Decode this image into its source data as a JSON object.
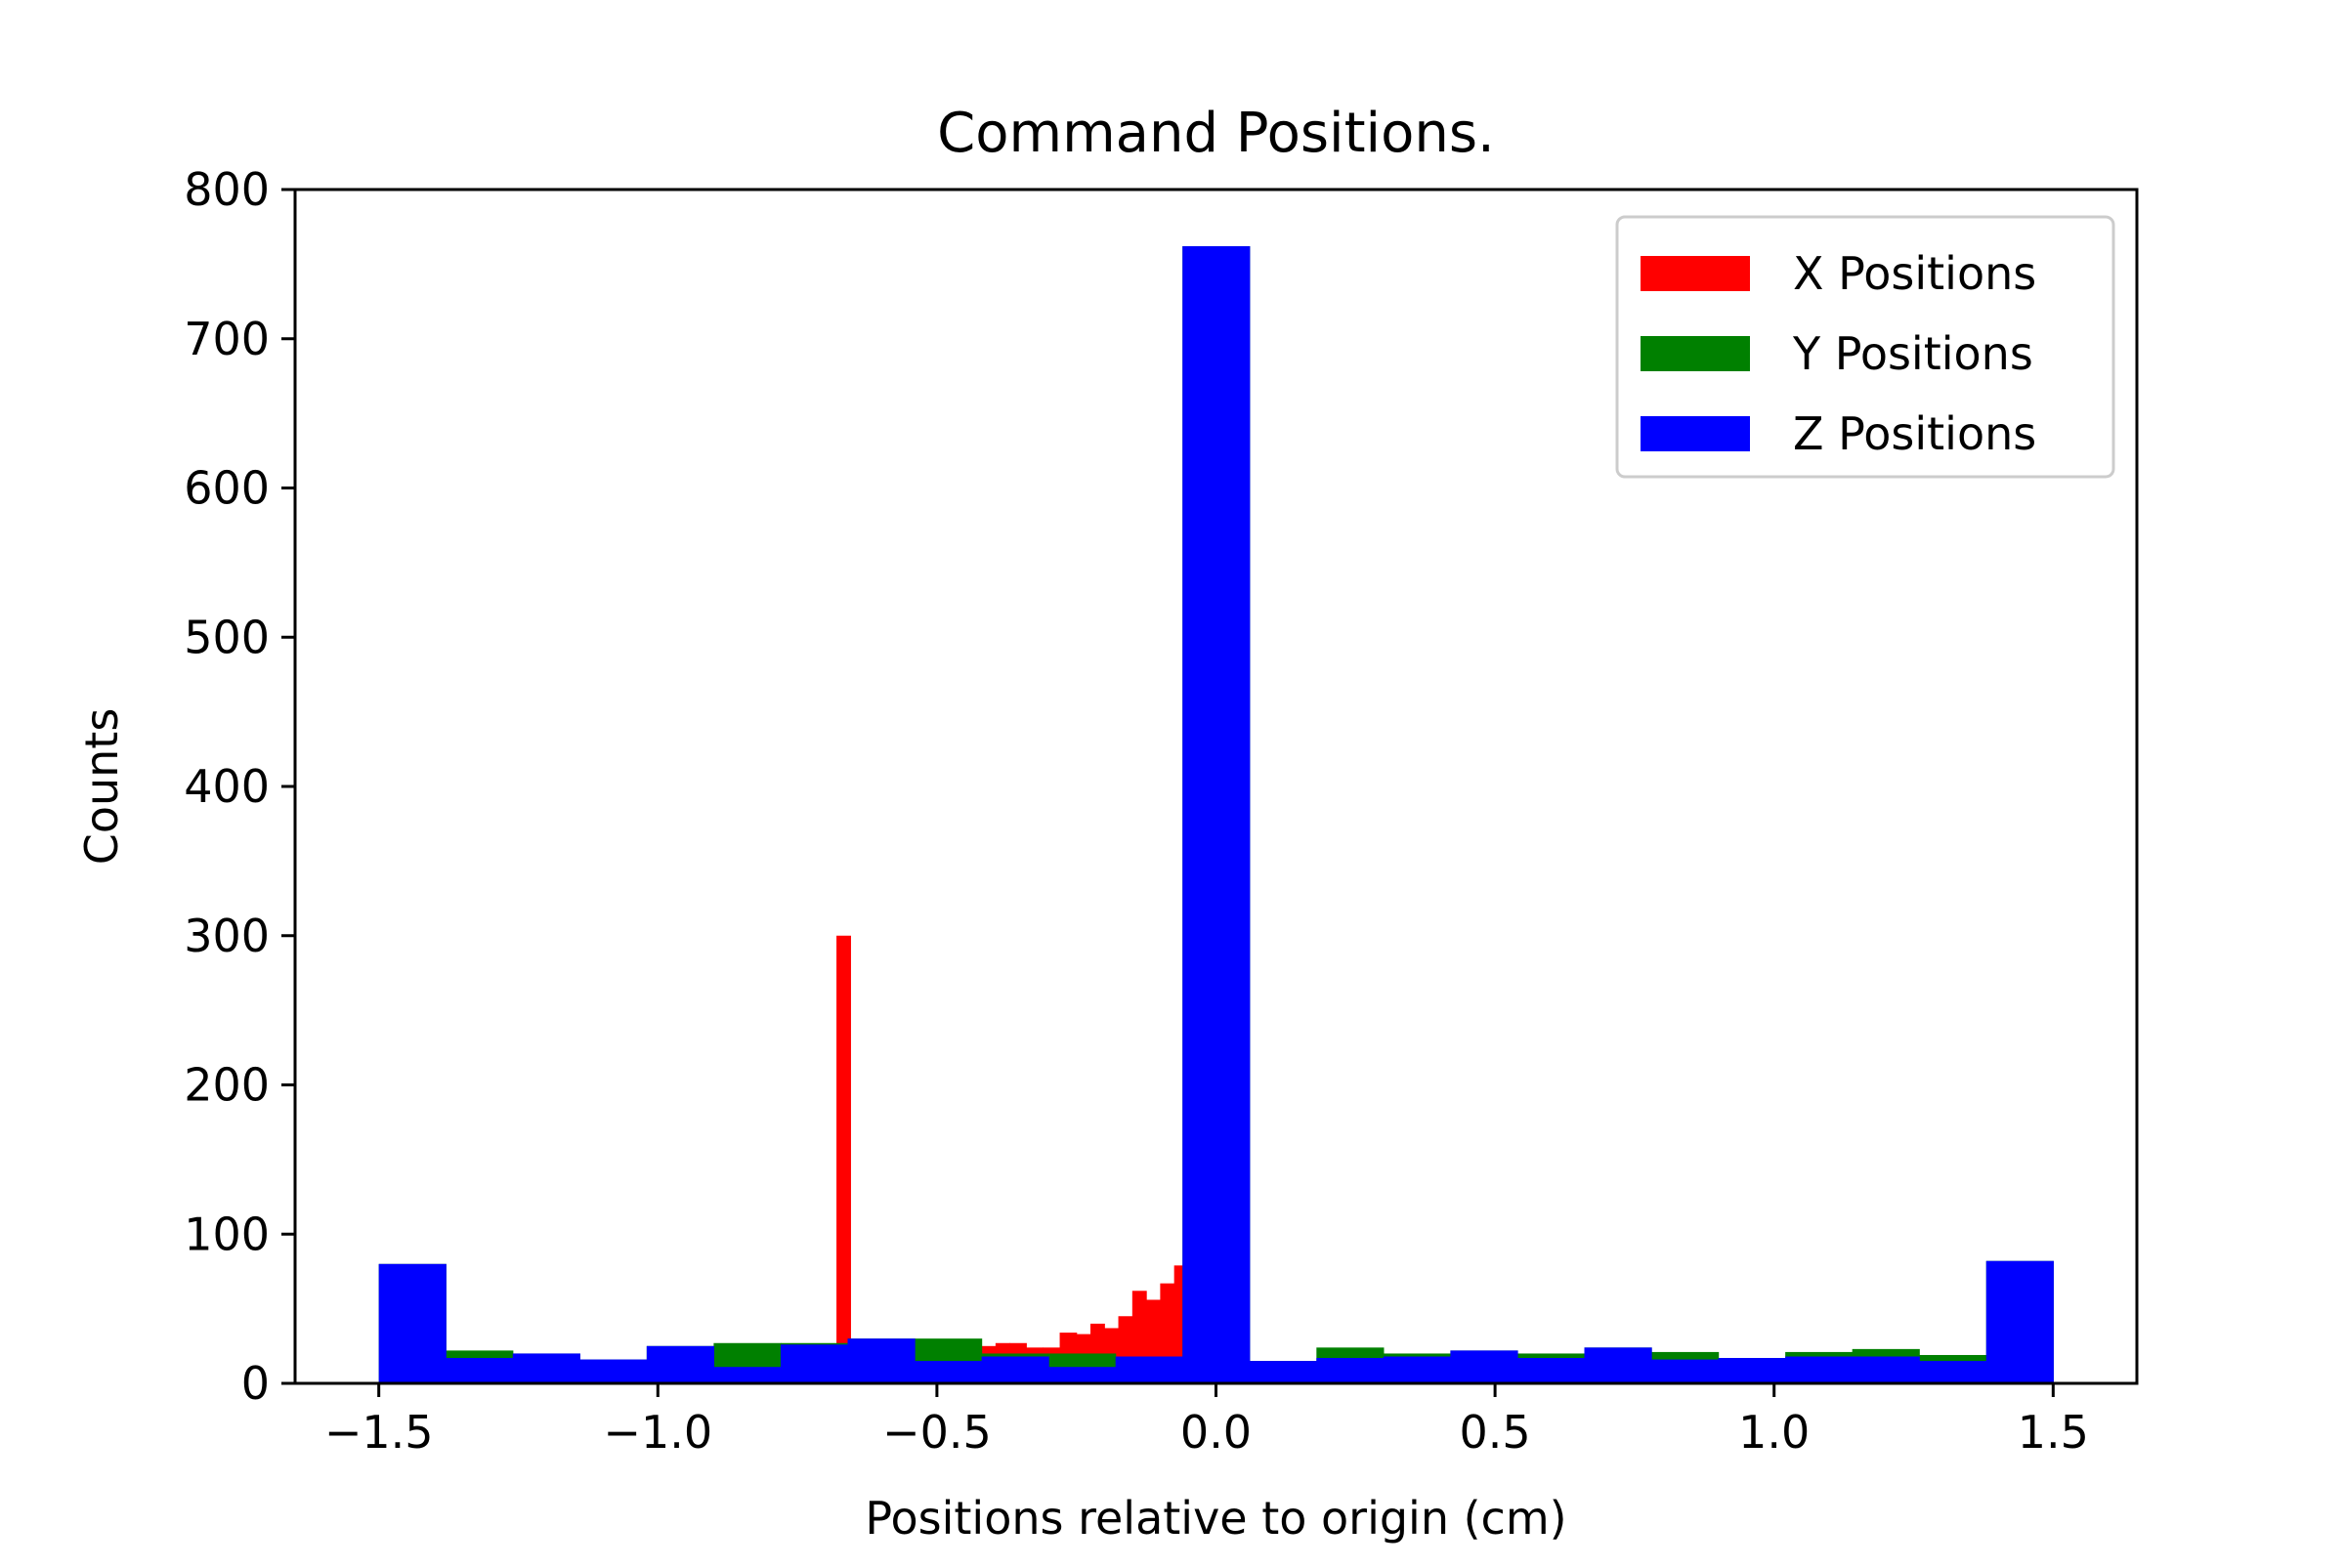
{
  "chart_data": {
    "type": "bar",
    "title": "Command Positions.",
    "xlabel": "Positions relative to origin (cm)",
    "ylabel": "Counts",
    "xlim": [
      -1.65,
      1.65
    ],
    "ylim": [
      0,
      800
    ],
    "xticks": [
      -1.5,
      -1.0,
      -0.5,
      0.0,
      0.5,
      1.0,
      1.5
    ],
    "xtick_labels": [
      "−1.5",
      "−1.0",
      "−0.5",
      "0.0",
      "0.5",
      "1.0",
      "1.5"
    ],
    "yticks": [
      0,
      100,
      200,
      300,
      400,
      500,
      600,
      700,
      800
    ],
    "ytick_labels": [
      "0",
      "100",
      "200",
      "300",
      "400",
      "500",
      "600",
      "700",
      "800"
    ],
    "grid": false,
    "legend_position": "top-right",
    "series": [
      {
        "name": "X Positions",
        "color": "#ff0000",
        "bins": [
          {
            "x0": -0.68,
            "x1": -0.655,
            "count": 300
          },
          {
            "x0": -0.42,
            "x1": -0.395,
            "count": 25
          },
          {
            "x0": -0.395,
            "x1": -0.37,
            "count": 27
          },
          {
            "x0": -0.37,
            "x1": -0.34,
            "count": 27
          },
          {
            "x0": -0.34,
            "x1": -0.31,
            "count": 24
          },
          {
            "x0": -0.31,
            "x1": -0.28,
            "count": 24
          },
          {
            "x0": -0.28,
            "x1": -0.25,
            "count": 34
          },
          {
            "x0": -0.25,
            "x1": -0.225,
            "count": 33
          },
          {
            "x0": -0.225,
            "x1": -0.2,
            "count": 40
          },
          {
            "x0": -0.2,
            "x1": -0.175,
            "count": 37
          },
          {
            "x0": -0.175,
            "x1": -0.15,
            "count": 45
          },
          {
            "x0": -0.15,
            "x1": -0.125,
            "count": 62
          },
          {
            "x0": -0.125,
            "x1": -0.1,
            "count": 56
          },
          {
            "x0": -0.1,
            "x1": -0.075,
            "count": 67
          },
          {
            "x0": -0.075,
            "x1": -0.06,
            "count": 79
          }
        ]
      },
      {
        "name": "Y Positions",
        "color": "#008000",
        "bins": [
          {
            "x0": -1.5,
            "x1": -1.38,
            "count": 80
          },
          {
            "x0": -1.38,
            "x1": -1.26,
            "count": 22
          },
          {
            "x0": -1.26,
            "x1": -1.14,
            "count": 20
          },
          {
            "x0": -1.14,
            "x1": -1.02,
            "count": 16
          },
          {
            "x0": -1.02,
            "x1": -0.9,
            "count": 25
          },
          {
            "x0": -0.9,
            "x1": -0.78,
            "count": 27
          },
          {
            "x0": -0.78,
            "x1": -0.66,
            "count": 27
          },
          {
            "x0": -0.66,
            "x1": -0.54,
            "count": 30
          },
          {
            "x0": -0.54,
            "x1": -0.42,
            "count": 30
          },
          {
            "x0": -0.42,
            "x1": -0.3,
            "count": 20
          },
          {
            "x0": -0.3,
            "x1": -0.18,
            "count": 20
          },
          {
            "x0": -0.18,
            "x1": -0.06,
            "count": 18
          },
          {
            "x0": -0.06,
            "x1": 0.06,
            "count": 762
          },
          {
            "x0": 0.06,
            "x1": 0.18,
            "count": 15
          },
          {
            "x0": 0.18,
            "x1": 0.3,
            "count": 24
          },
          {
            "x0": 0.3,
            "x1": 0.42,
            "count": 20
          },
          {
            "x0": 0.42,
            "x1": 0.54,
            "count": 22
          },
          {
            "x0": 0.54,
            "x1": 0.66,
            "count": 20
          },
          {
            "x0": 0.66,
            "x1": 0.78,
            "count": 24
          },
          {
            "x0": 0.78,
            "x1": 0.9,
            "count": 21
          },
          {
            "x0": 0.9,
            "x1": 1.02,
            "count": 17
          },
          {
            "x0": 1.02,
            "x1": 1.14,
            "count": 21
          },
          {
            "x0": 1.14,
            "x1": 1.26,
            "count": 23
          },
          {
            "x0": 1.26,
            "x1": 1.38,
            "count": 19
          },
          {
            "x0": 1.38,
            "x1": 1.5,
            "count": 82
          }
        ]
      },
      {
        "name": "Z Positions",
        "color": "#0000ff",
        "bins": [
          {
            "x0": -1.5,
            "x1": -1.38,
            "count": 80
          },
          {
            "x0": -1.38,
            "x1": -1.26,
            "count": 17
          },
          {
            "x0": -1.26,
            "x1": -1.14,
            "count": 20
          },
          {
            "x0": -1.14,
            "x1": -1.02,
            "count": 16
          },
          {
            "x0": -1.02,
            "x1": -0.9,
            "count": 25
          },
          {
            "x0": -0.9,
            "x1": -0.78,
            "count": 11
          },
          {
            "x0": -0.78,
            "x1": -0.66,
            "count": 26
          },
          {
            "x0": -0.66,
            "x1": -0.54,
            "count": 30
          },
          {
            "x0": -0.54,
            "x1": -0.42,
            "count": 15
          },
          {
            "x0": -0.42,
            "x1": -0.3,
            "count": 18
          },
          {
            "x0": -0.3,
            "x1": -0.18,
            "count": 11
          },
          {
            "x0": -0.18,
            "x1": -0.06,
            "count": 18
          },
          {
            "x0": -0.06,
            "x1": 0.06,
            "count": 762
          },
          {
            "x0": 0.06,
            "x1": 0.18,
            "count": 15
          },
          {
            "x0": 0.18,
            "x1": 0.3,
            "count": 17
          },
          {
            "x0": 0.3,
            "x1": 0.42,
            "count": 18
          },
          {
            "x0": 0.42,
            "x1": 0.54,
            "count": 22
          },
          {
            "x0": 0.54,
            "x1": 0.66,
            "count": 17
          },
          {
            "x0": 0.66,
            "x1": 0.78,
            "count": 24
          },
          {
            "x0": 0.78,
            "x1": 0.9,
            "count": 16
          },
          {
            "x0": 0.9,
            "x1": 1.02,
            "count": 17
          },
          {
            "x0": 1.02,
            "x1": 1.14,
            "count": 18
          },
          {
            "x0": 1.14,
            "x1": 1.26,
            "count": 18
          },
          {
            "x0": 1.26,
            "x1": 1.38,
            "count": 15
          },
          {
            "x0": 1.38,
            "x1": 1.5,
            "count": 82
          }
        ]
      }
    ]
  }
}
